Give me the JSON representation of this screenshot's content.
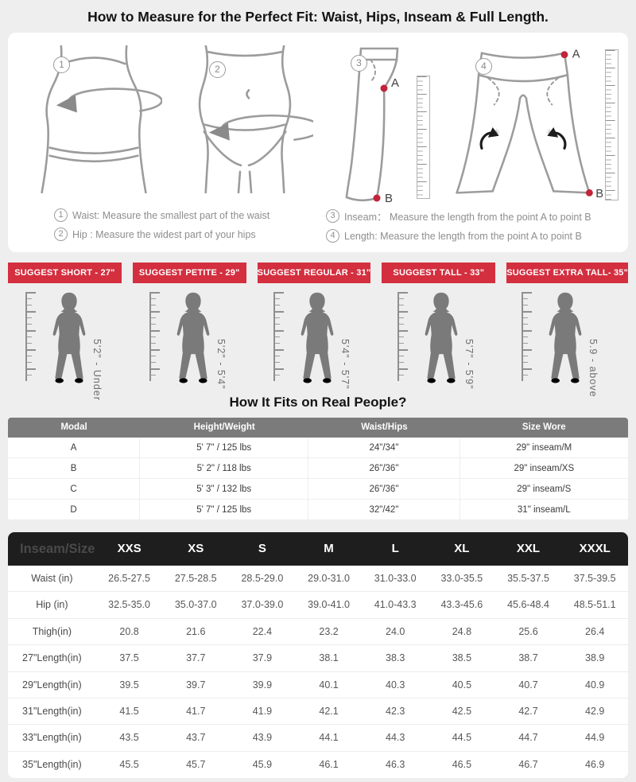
{
  "page": {
    "title": "How to Measure for the Perfect Fit: Waist, Hips, Inseam & Full Length."
  },
  "instructions": [
    {
      "num": "1",
      "text": "Waist: Measure the smallest part of the waist"
    },
    {
      "num": "2",
      "text": "Hip : Measure the widest part of your hips"
    },
    {
      "num": "3",
      "text": "Inseam：  Measure the length from the point A to point B"
    },
    {
      "num": "4",
      "text": "Length: Measure the length from the point A to point B"
    }
  ],
  "illustration_points": {
    "a": "A",
    "b": "B"
  },
  "suggest_banners": [
    "SUGGEST SHORT - 27\"",
    "SUGGEST PETITE - 29\"",
    "SUGGEST REGULAR - 31\"",
    "SUGGEST TALL - 33\"",
    "SUGGEST EXTRA TALL- 35\""
  ],
  "height_figures": [
    "5'2\" - Under",
    "5'2\" - 5'4\"",
    "5'4\" - 5'7\"",
    "5'7\" - 5'9\"",
    "5.9 - above"
  ],
  "fit_section": {
    "heading": "How It Fits on Real People?",
    "table": {
      "columns": [
        "Modal",
        "Height/Weight",
        "Waist/Hips",
        "Size Wore"
      ],
      "rows": [
        [
          "A",
          "5' 7\" / 125 lbs",
          "24\"/34\"",
          "29\" inseam/M"
        ],
        [
          "B",
          "5' 2\" / 118 lbs",
          "26\"/36\"",
          "29\" inseam/XS"
        ],
        [
          "C",
          "5' 3\" / 132 lbs",
          "26\"/36\"",
          "29\" inseam/S"
        ],
        [
          "D",
          "5' 7\" / 125 lbs",
          "32\"/42\"",
          "31\" inseam/L"
        ]
      ]
    }
  },
  "size_chart": {
    "columns": [
      "Inseam/Size",
      "XXS",
      "XS",
      "S",
      "M",
      "L",
      "XL",
      "XXL",
      "XXXL"
    ],
    "rows": [
      [
        "Waist (in)",
        "26.5-27.5",
        "27.5-28.5",
        "28.5-29.0",
        "29.0-31.0",
        "31.0-33.0",
        "33.0-35.5",
        "35.5-37.5",
        "37.5-39.5"
      ],
      [
        "Hip (in)",
        "32.5-35.0",
        "35.0-37.0",
        "37.0-39.0",
        "39.0-41.0",
        "41.0-43.3",
        "43.3-45.6",
        "45.6-48.4",
        "48.5-51.1"
      ],
      [
        "Thigh(in)",
        "20.8",
        "21.6",
        "22.4",
        "23.2",
        "24.0",
        "24.8",
        "25.6",
        "26.4"
      ],
      [
        "27\"Length(in)",
        "37.5",
        "37.7",
        "37.9",
        "38.1",
        "38.3",
        "38.5",
        "38.7",
        "38.9"
      ],
      [
        "29\"Length(in)",
        "39.5",
        "39.7",
        "39.9",
        "40.1",
        "40.3",
        "40.5",
        "40.7",
        "40.9"
      ],
      [
        "31\"Length(in)",
        "41.5",
        "41.7",
        "41.9",
        "42.1",
        "42.3",
        "42.5",
        "42.7",
        "42.9"
      ],
      [
        "33\"Length(in)",
        "43.5",
        "43.7",
        "43.9",
        "44.1",
        "44.3",
        "44.5",
        "44.7",
        "44.9"
      ],
      [
        "35\"Length(in)",
        "45.5",
        "45.7",
        "45.9",
        "46.1",
        "46.3",
        "46.5",
        "46.7",
        "46.9"
      ]
    ]
  },
  "colors": {
    "accent_red": "#d32f3f",
    "fit_header_gray": "#7b7b7b",
    "size_header_dark": "#1e1e1e"
  }
}
